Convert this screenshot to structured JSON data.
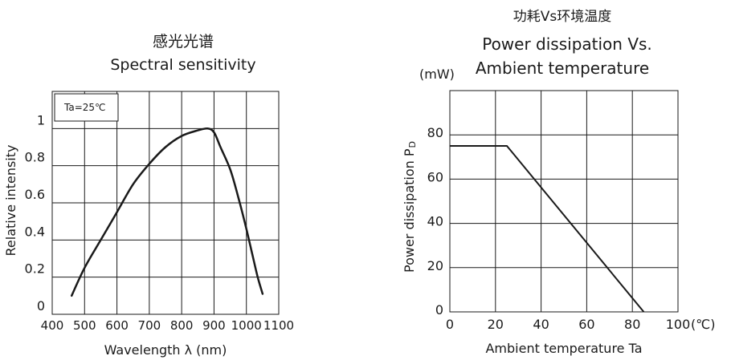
{
  "chart_data": [
    {
      "type": "line",
      "title": "感光光谱",
      "subtitle": "Spectral sensitivity",
      "xlabel": "Wavelength  λ (nm)",
      "ylabel": "Relative intensity",
      "annotation": "Ta=25℃",
      "xlim": [
        400,
        1100
      ],
      "ylim": [
        0,
        1.2
      ],
      "x_ticks": [
        "400",
        "500",
        "600",
        "700",
        "800",
        "900",
        "1000",
        "1100"
      ],
      "y_ticks": [
        "0",
        "0.2",
        "0.4",
        "0.6",
        "0.8",
        "1"
      ],
      "grid": true,
      "series": [
        {
          "x": [
            460,
            500,
            550,
            600,
            650,
            700,
            750,
            800,
            850,
            880,
            900,
            920,
            950,
            975,
            1000,
            1020,
            1035,
            1050
          ],
          "y": [
            0.1,
            0.25,
            0.4,
            0.55,
            0.7,
            0.81,
            0.9,
            0.96,
            0.99,
            1.0,
            0.98,
            0.9,
            0.78,
            0.63,
            0.46,
            0.31,
            0.2,
            0.11
          ]
        }
      ]
    },
    {
      "type": "line",
      "title": "功耗Vs环境温度",
      "subtitle_line1": "Power dissipation Vs.",
      "subtitle_line2": "Ambient temperature",
      "unit_label": "(mW)",
      "xlabel": "Ambient temperature Ta",
      "ylabel": "Power dissipation P",
      "ylabel_sub": "D",
      "xlim": [
        0,
        100
      ],
      "ylim": [
        0,
        100
      ],
      "x_ticks": [
        "0",
        "20",
        "40",
        "60",
        "80",
        "100"
      ],
      "x_unit": "(℃)",
      "y_ticks": [
        "0",
        "20",
        "40",
        "60",
        "80"
      ],
      "grid": true,
      "series": [
        {
          "x": [
            0,
            25,
            85
          ],
          "y": [
            75,
            75,
            0
          ]
        }
      ]
    }
  ]
}
